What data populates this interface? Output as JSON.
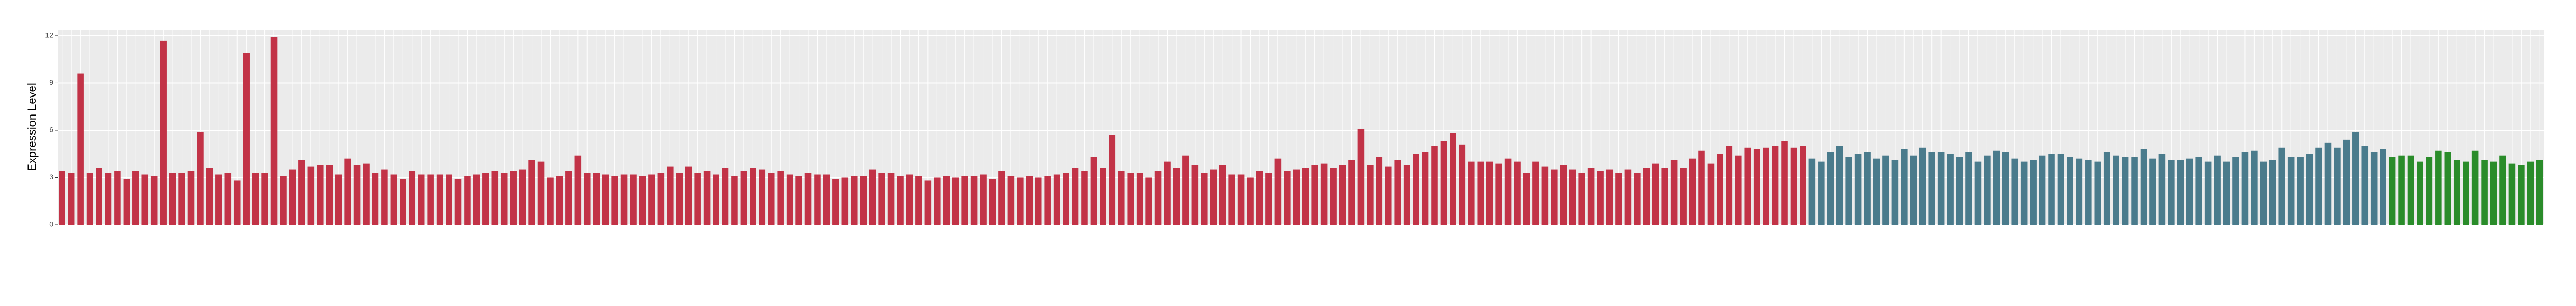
{
  "chart_data": {
    "type": "bar",
    "y_label": "Expression Level",
    "ylim": [
      0,
      12.4
    ],
    "yticks": [
      0,
      3,
      6,
      9,
      12
    ],
    "grid": true,
    "series": [
      {
        "color": "#c23347",
        "values": [
          3.4,
          3.3,
          9.6,
          3.3,
          3.6,
          3.3,
          3.4,
          2.9,
          3.4,
          3.2,
          3.1,
          11.7,
          3.3,
          3.3,
          3.4,
          5.9,
          3.6,
          3.2,
          3.3,
          2.8,
          10.9,
          3.3,
          3.3,
          11.9,
          3.1,
          3.5,
          4.1,
          3.7,
          3.8,
          3.8,
          3.2,
          4.2,
          3.8,
          3.9,
          3.3,
          3.5,
          3.2,
          2.9,
          3.4,
          3.2,
          3.2,
          3.2,
          3.2,
          2.9,
          3.1,
          3.2,
          3.3,
          3.4,
          3.3,
          3.4,
          3.5,
          4.1,
          4.0,
          3.0,
          3.1,
          3.4,
          4.4,
          3.3,
          3.3,
          3.2,
          3.1,
          3.2,
          3.2,
          3.1,
          3.2,
          3.3,
          3.7,
          3.3,
          3.7,
          3.3,
          3.4,
          3.2,
          3.6,
          3.1,
          3.4,
          3.6,
          3.5,
          3.3,
          3.4,
          3.2,
          3.1,
          3.3,
          3.2,
          3.2,
          2.9,
          3.0,
          3.1,
          3.1,
          3.5,
          3.3,
          3.3,
          3.1,
          3.2,
          3.1,
          2.8,
          3.0,
          3.1,
          3.0,
          3.1,
          3.1,
          3.2,
          2.9,
          3.4,
          3.1,
          3.0,
          3.1,
          3.0,
          3.1,
          3.2,
          3.3,
          3.6,
          3.4,
          4.3,
          3.6,
          5.7,
          3.4,
          3.3,
          3.3,
          3.0,
          3.4,
          4.0,
          3.6,
          4.4,
          3.8,
          3.3,
          3.5,
          3.8,
          3.2,
          3.2,
          3.0,
          3.4,
          3.3,
          4.2,
          3.4,
          3.5,
          3.6,
          3.8,
          3.9,
          3.6,
          3.8,
          4.1,
          6.1,
          3.8,
          4.3,
          3.7,
          4.1,
          3.8,
          4.5,
          4.6,
          5.0,
          5.3,
          5.8,
          5.1,
          4.0,
          4.0,
          4.0,
          3.9,
          4.2,
          4.0,
          3.3,
          4.0,
          3.7,
          3.5,
          3.8,
          3.5,
          3.3,
          3.6,
          3.4,
          3.5,
          3.3,
          3.5,
          3.3,
          3.6,
          3.9,
          3.6,
          4.1,
          3.6,
          4.2,
          4.7,
          3.9,
          4.5,
          5.0,
          4.4,
          4.9,
          4.8,
          4.9,
          5.0,
          5.3,
          4.9,
          5.0
        ]
      },
      {
        "color": "#4a7b8c",
        "values": [
          4.2,
          4.0,
          4.6,
          5.0,
          4.3,
          4.5,
          4.6,
          4.2,
          4.4,
          4.1,
          4.8,
          4.4,
          4.9,
          4.6,
          4.6,
          4.5,
          4.3,
          4.6,
          4.0,
          4.4,
          4.7,
          4.6,
          4.2,
          4.0,
          4.1,
          4.4,
          4.5,
          4.5,
          4.3,
          4.2,
          4.1,
          4.0,
          4.6,
          4.4,
          4.3,
          4.3,
          4.8,
          4.2,
          4.5,
          4.1,
          4.1,
          4.2,
          4.3,
          4.0,
          4.4,
          4.0,
          4.3,
          4.6,
          4.7,
          4.0,
          4.1,
          4.9,
          4.3,
          4.3,
          4.5,
          4.9,
          5.2,
          4.9,
          5.4,
          5.9,
          5.0,
          4.6,
          4.8
        ]
      },
      {
        "color": "#2a8c2a",
        "values": [
          4.3,
          4.4,
          4.4,
          4.0,
          4.3,
          4.7,
          4.6,
          4.1,
          4.0,
          4.7,
          4.1,
          4.0,
          4.4,
          3.9,
          3.8,
          4.0,
          4.1
        ]
      }
    ]
  }
}
